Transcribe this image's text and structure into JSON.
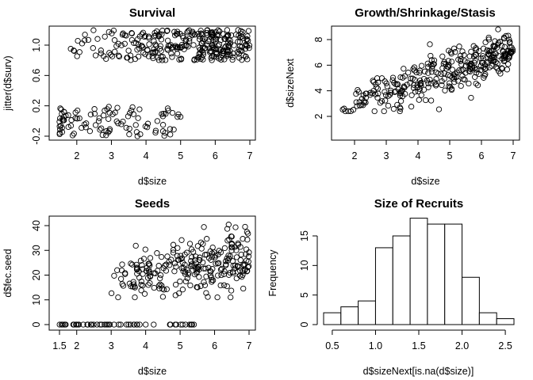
{
  "chart_data": [
    {
      "type": "scatter",
      "title": "Survival",
      "xlabel": "d$size",
      "ylabel": "jitter(d$surv)",
      "xlim": [
        1.3,
        7.2
      ],
      "ylim": [
        -0.25,
        1.25
      ],
      "xticks": [
        "2",
        "3",
        "4",
        "5",
        "6",
        "7"
      ],
      "yticks": [
        "-0.2",
        "0.2",
        "0.6",
        "1.0"
      ],
      "grid": false,
      "point_style": "open-circle"
    },
    {
      "type": "scatter",
      "title": "Growth/Shrinkage/Stasis",
      "xlabel": "d$size",
      "ylabel": "d$sizeNext",
      "xlim": [
        1.3,
        7.2
      ],
      "ylim": [
        1.0,
        9.0
      ],
      "xticks": [
        "2",
        "3",
        "4",
        "5",
        "6",
        "7"
      ],
      "yticks": [
        "2",
        "4",
        "6",
        "8"
      ],
      "grid": false,
      "point_style": "open-circle"
    },
    {
      "type": "scatter",
      "title": "Seeds",
      "xlabel": "d$size",
      "ylabel": "d$fec.seed",
      "xlim": [
        1.3,
        7.2
      ],
      "ylim": [
        -2,
        43
      ],
      "xticks": [
        "1.5",
        "2",
        "3",
        "4",
        "5",
        "6",
        "7"
      ],
      "yticks": [
        "0",
        "10",
        "20",
        "30",
        "40"
      ],
      "grid": false,
      "point_style": "open-circle"
    },
    {
      "type": "bar",
      "subtype": "histogram",
      "title": "Size of Recruits",
      "xlabel": "d$sizeNext[is.na(d$size)]",
      "ylabel": "Frequency",
      "bin_edges": [
        0.4,
        0.6,
        0.8,
        1.0,
        1.2,
        1.4,
        1.6,
        1.8,
        2.0,
        2.2,
        2.4,
        2.6
      ],
      "values": [
        2,
        3,
        4,
        13,
        15,
        18,
        17,
        17,
        8,
        2,
        1
      ],
      "xlim": [
        0.4,
        2.6
      ],
      "ylim": [
        0,
        18
      ],
      "xticks": [
        "0.5",
        "1.0",
        "1.5",
        "2.0",
        "2.5"
      ],
      "yticks": [
        "0",
        "5",
        "10",
        "15"
      ],
      "grid": false
    }
  ]
}
